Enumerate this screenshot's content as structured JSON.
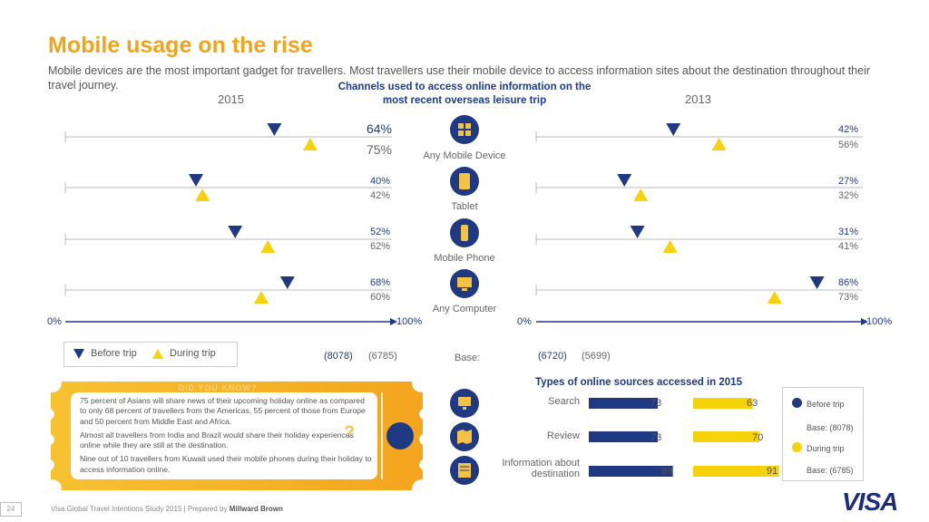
{
  "page": {
    "title": "Mobile usage on the rise",
    "subtitle": "Mobile devices are the most important gadget for travellers. Most travellers use their mobile device to access information sites about the destination throughout their travel journey.",
    "channels_title": "Channels used to access online information on the most recent overseas leisure trip",
    "year_left": "2015",
    "year_right": "2013",
    "axis_min_label": "0%",
    "axis_max_label": "100%",
    "legend_before": "Before trip",
    "legend_during": "During trip",
    "base_label": "Base:",
    "base_2015_before": "(8078)",
    "base_2015_during": "(6785)",
    "base_2013_before": "(6720)",
    "base_2013_during": "(5699)",
    "did_you_know_title": "DID YOU KNOW?",
    "did_you_know_paragraphs": [
      "75 percent of Asians will share news of their upcoming holiday online as compared to only 68 percent of travellers from the Americas, 55 percent of those from Europe and 50 percent from Middle East and Africa.",
      "Almost all travellers from India and Brazil would share their holiday experiences online while they are still at the destination.",
      "Nine out of 10 travellers from Kuwait used their mobile phones during their holiday to access information online."
    ],
    "question_mark": "?",
    "footer_page": "24",
    "footer_text": "Visa Global Travel Intentions Study 2015 | Prepared by ",
    "footer_bold": "Millward Brown",
    "logo": "VISA"
  },
  "colors": {
    "accent": "#f0a41a",
    "blue": "#1f3a83",
    "yellow": "#f6d20a",
    "grey": "#666666"
  },
  "chart_data": [
    {
      "type": "scatter",
      "title": "Channels used to access online information (2015)",
      "xlim": [
        0,
        100
      ],
      "categories": [
        "Any Mobile Device",
        "Tablet",
        "Mobile Phone",
        "Any Computer"
      ],
      "series": [
        {
          "name": "Before trip",
          "values": [
            64,
            40,
            52,
            68
          ],
          "labels": [
            "64%",
            "40%",
            "52%",
            "68%"
          ]
        },
        {
          "name": "During trip",
          "values": [
            75,
            42,
            62,
            60
          ],
          "labels": [
            "75%",
            "42%",
            "62%",
            "60%"
          ]
        }
      ]
    },
    {
      "type": "scatter",
      "title": "Channels used to access online information (2013)",
      "xlim": [
        0,
        100
      ],
      "categories": [
        "Any Mobile Device",
        "Tablet",
        "Mobile Phone",
        "Any Computer"
      ],
      "series": [
        {
          "name": "Before trip",
          "values": [
            42,
            27,
            31,
            86
          ],
          "labels": [
            "42%",
            "27%",
            "31%",
            "86%"
          ]
        },
        {
          "name": "During trip",
          "values": [
            56,
            32,
            41,
            73
          ],
          "labels": [
            "56%",
            "32%",
            "41%",
            "73%"
          ]
        }
      ]
    },
    {
      "type": "bar",
      "title": "Types of online sources accessed in 2015",
      "categories": [
        "Search",
        "Review",
        "Information about destination"
      ],
      "series": [
        {
          "name": "Before trip",
          "values": [
            73,
            73,
            89
          ],
          "base": "Base: (8078)"
        },
        {
          "name": "During trip",
          "values": [
            63,
            70,
            91
          ],
          "base": "Base: (6785)"
        }
      ]
    }
  ],
  "icons": [
    "mobile-devices-icon",
    "tablet-icon",
    "mobile-phone-icon",
    "computer-icon",
    "search-icon",
    "review-icon",
    "destination-info-icon"
  ]
}
